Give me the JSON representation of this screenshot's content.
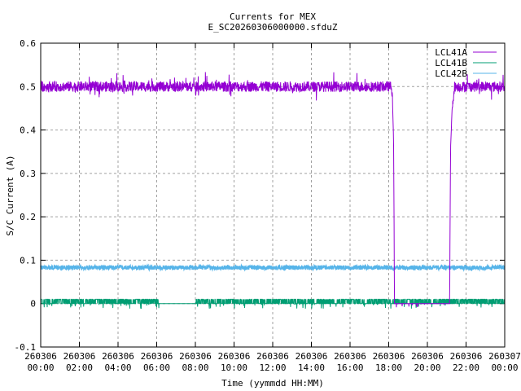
{
  "chart_data": {
    "type": "line",
    "title": "Currents for MEX",
    "subtitle": "E_SC20260306000000.sfduZ",
    "xlabel": "Time (yymmdd HH:MM)",
    "ylabel": "S/C Current (A)",
    "xlim_hours": [
      0,
      24
    ],
    "ylim": [
      -0.1,
      0.6
    ],
    "y_ticks": [
      "-0.1",
      "0",
      "0.1",
      "0.2",
      "0.3",
      "0.4",
      "0.5",
      "0.6"
    ],
    "y_tick_values": [
      -0.1,
      0,
      0.1,
      0.2,
      0.3,
      0.4,
      0.5,
      0.6
    ],
    "x_ticks": [
      {
        "date": "260306",
        "time": "00:00",
        "hour": 0
      },
      {
        "date": "260306",
        "time": "02:00",
        "hour": 2
      },
      {
        "date": "260306",
        "time": "04:00",
        "hour": 4
      },
      {
        "date": "260306",
        "time": "06:00",
        "hour": 6
      },
      {
        "date": "260306",
        "time": "08:00",
        "hour": 8
      },
      {
        "date": "260306",
        "time": "10:00",
        "hour": 10
      },
      {
        "date": "260306",
        "time": "12:00",
        "hour": 12
      },
      {
        "date": "260306",
        "time": "14:00",
        "hour": 14
      },
      {
        "date": "260306",
        "time": "16:00",
        "hour": 16
      },
      {
        "date": "260306",
        "time": "18:00",
        "hour": 18
      },
      {
        "date": "260306",
        "time": "20:00",
        "hour": 20
      },
      {
        "date": "260306",
        "time": "22:00",
        "hour": 22
      },
      {
        "date": "260307",
        "time": "00:00",
        "hour": 24
      }
    ],
    "grid": true,
    "legend_position": "top-right",
    "series": [
      {
        "name": "LCL41A",
        "color": "#9400d3",
        "noise": 0.012,
        "points": [
          [
            0,
            0.5
          ],
          [
            18.15,
            0.5
          ],
          [
            18.2,
            0.46
          ],
          [
            18.25,
            0.38
          ],
          [
            18.3,
            0.0
          ],
          [
            21.15,
            0.0
          ],
          [
            21.2,
            0.36
          ],
          [
            21.28,
            0.45
          ],
          [
            21.4,
            0.5
          ],
          [
            24,
            0.5
          ]
        ]
      },
      {
        "name": "LCL41B",
        "color": "#009e73",
        "noise": 0.006,
        "points": [
          [
            0,
            0.005
          ],
          [
            6.1,
            0.005
          ],
          [
            6.12,
            0.0
          ],
          [
            8.0,
            0.0
          ],
          [
            8.02,
            0.005
          ],
          [
            24,
            0.005
          ]
        ]
      },
      {
        "name": "LCL42B",
        "color": "#56b4e9",
        "noise": 0.005,
        "points": [
          [
            0,
            0.083
          ],
          [
            24,
            0.083
          ]
        ]
      }
    ]
  }
}
